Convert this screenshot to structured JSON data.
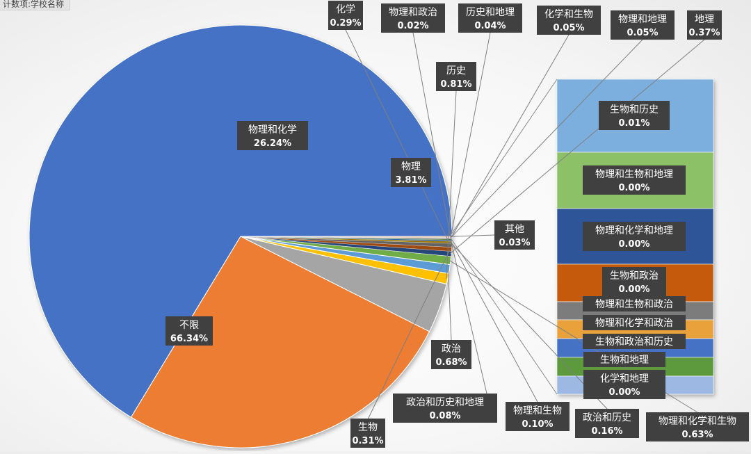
{
  "field_button": {
    "label": "计数项:学校名称"
  },
  "chart_data": {
    "type": "bar-of-pie",
    "title": "",
    "pie": [
      {
        "name": "不限",
        "label": "66.34%",
        "value": 66.34,
        "color": "#4472C4"
      },
      {
        "name": "物理和化学",
        "label": "26.24%",
        "value": 26.24,
        "color": "#ED7D31"
      },
      {
        "name": "物理",
        "label": "3.81%",
        "value": 3.81,
        "color": "#A5A5A5"
      },
      {
        "name": "历史",
        "label": "0.81%",
        "value": 0.81,
        "color": "#FFC000"
      },
      {
        "name": "政治",
        "label": "0.68%",
        "value": 0.68,
        "color": "#5B9BD5"
      },
      {
        "name": "物理和化学和生物",
        "label": "0.63%",
        "value": 0.63,
        "color": "#70AD47"
      },
      {
        "name": "地理",
        "label": "0.37%",
        "value": 0.37,
        "color": "#264478"
      },
      {
        "name": "生物",
        "label": "0.31%",
        "value": 0.31,
        "color": "#9E480E"
      },
      {
        "name": "化学",
        "label": "0.29%",
        "value": 0.29,
        "color": "#636363"
      },
      {
        "name": "政治和历史",
        "label": "0.16%",
        "value": 0.16,
        "color": "#997300"
      },
      {
        "name": "物理和生物",
        "label": "0.10%",
        "value": 0.1,
        "color": "#255E91"
      },
      {
        "name": "政治和历史和地理",
        "label": "0.08%",
        "value": 0.08,
        "color": "#43682B"
      },
      {
        "name": "化学和生物",
        "label": "0.05%",
        "value": 0.05,
        "color": "#698ED0"
      },
      {
        "name": "物理和地理",
        "label": "0.05%",
        "value": 0.05,
        "color": "#F1975A"
      },
      {
        "name": "历史和地理",
        "label": "0.04%",
        "value": 0.04,
        "color": "#B7B7B7"
      },
      {
        "name": "物理和政治",
        "label": "0.02%",
        "value": 0.02,
        "color": "#FFCD33"
      },
      {
        "name": "其他",
        "label": "0.03%",
        "value": 0.03,
        "color": "#C55A11"
      }
    ],
    "bar": [
      {
        "name": "生物和历史",
        "label": "0.01%",
        "color": "#7CAFDD"
      },
      {
        "name": "物理和生物和地理",
        "label": "0.00%",
        "color": "#8CC168"
      },
      {
        "name": "物理和化学和地理",
        "label": "0.00%",
        "color": "#2F5597"
      },
      {
        "name": "生物和政治",
        "label": "0.00%",
        "color": "#C55A11"
      },
      {
        "name": "物理和生物和政治",
        "label": "",
        "color": "#7B7B7B"
      },
      {
        "name": "物理和化学和政治",
        "label": "",
        "color": "#E9A23B"
      },
      {
        "name": "生物和政治和历史",
        "label": "",
        "color": "#4472C4"
      },
      {
        "name": "生物和地理",
        "label": "",
        "color": "#5B9A3C"
      },
      {
        "name": "化学和地理",
        "label": "0.00%",
        "color": "#9DB9E3"
      }
    ]
  }
}
